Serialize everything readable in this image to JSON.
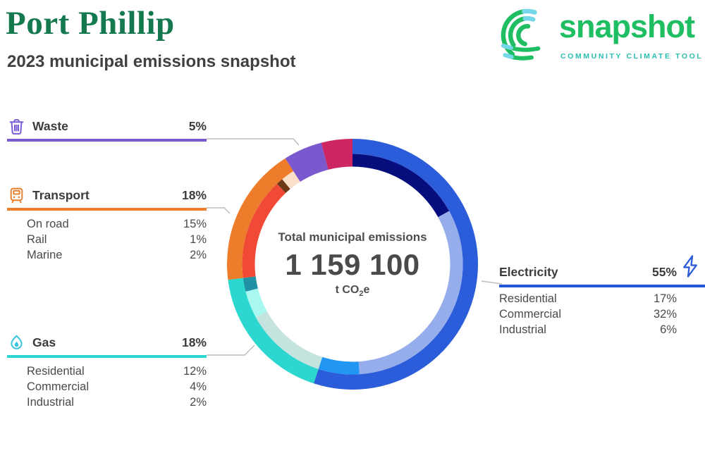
{
  "header": {
    "title": "Port Phillip",
    "subtitle": "2023 municipal emissions snapshot",
    "title_color": "#15794F"
  },
  "logo": {
    "wordmark": "snapshot",
    "tagline": "COMMUNITY CLIMATE TOOL",
    "wordmark_color": "#1FBE62",
    "tagline_color": "#2BBFB2",
    "arc_green": "#1FBE62",
    "arc_teal": "#74D7E8"
  },
  "donut_center": {
    "label": "Total municipal emissions",
    "value": "1 159 100",
    "unit_main": "t CO",
    "unit_sub": "2",
    "unit_tail": "e"
  },
  "chart_data": {
    "type": "donut",
    "title": "Total municipal emissions",
    "total_value": 1159100,
    "total_display": "1 159 100",
    "unit": "t CO2e",
    "start_angle_deg": 0,
    "direction": "clockwise",
    "categories": [
      {
        "label": "Electricity",
        "pct": 55,
        "pct_label": "55%",
        "color": "#2B5CD9",
        "bar_color": "#2156D4",
        "icon": "lightning-icon",
        "icon_color": "#2E5BD8",
        "children": [
          {
            "label": "Residential",
            "pct": 17,
            "pct_label": "17%",
            "color": "#060D7D"
          },
          {
            "label": "Commercial",
            "pct": 32,
            "pct_label": "32%",
            "color": "#96ADEB"
          },
          {
            "label": "Industrial",
            "pct": 6,
            "pct_label": "6%",
            "color": "#2196F3"
          }
        ]
      },
      {
        "label": "Gas",
        "pct": 18,
        "pct_label": "18%",
        "color": "#2BD7CE",
        "bar_color": "#2BD7CE",
        "icon": "flame-icon",
        "icon_color": "#3BC6DF",
        "children": [
          {
            "label": "Residential",
            "pct": 12,
            "pct_label": "12%",
            "color": "#C5E4DF"
          },
          {
            "label": "Commercial",
            "pct": 4,
            "pct_label": "4%",
            "color": "#A8F8F1"
          },
          {
            "label": "Industrial",
            "pct": 2,
            "pct_label": "2%",
            "color": "#2191A6"
          }
        ]
      },
      {
        "label": "Transport",
        "pct": 18,
        "pct_label": "18%",
        "color": "#EE7D2B",
        "bar_color": "#EE7D2B",
        "icon": "train-icon",
        "icon_color": "#E8802E",
        "children": [
          {
            "label": "On road",
            "pct": 15,
            "pct_label": "15%",
            "color": "#F04A36"
          },
          {
            "label": "Rail",
            "pct": 1,
            "pct_label": "1%",
            "color": "#6F3A17"
          },
          {
            "label": "Marine",
            "pct": 2,
            "pct_label": "2%",
            "color": "#FADFCB"
          }
        ]
      },
      {
        "label": "Waste",
        "pct": 5,
        "pct_label": "5%",
        "color": "#7A58CE",
        "bar_color": "#7A58CE",
        "icon": "trash-icon",
        "icon_color": "#7B5BD3",
        "children": []
      },
      {
        "label": "",
        "pct": 4,
        "pct_label": "",
        "color": "#CE2563",
        "bar_color": "#CE2563",
        "children": []
      }
    ]
  }
}
